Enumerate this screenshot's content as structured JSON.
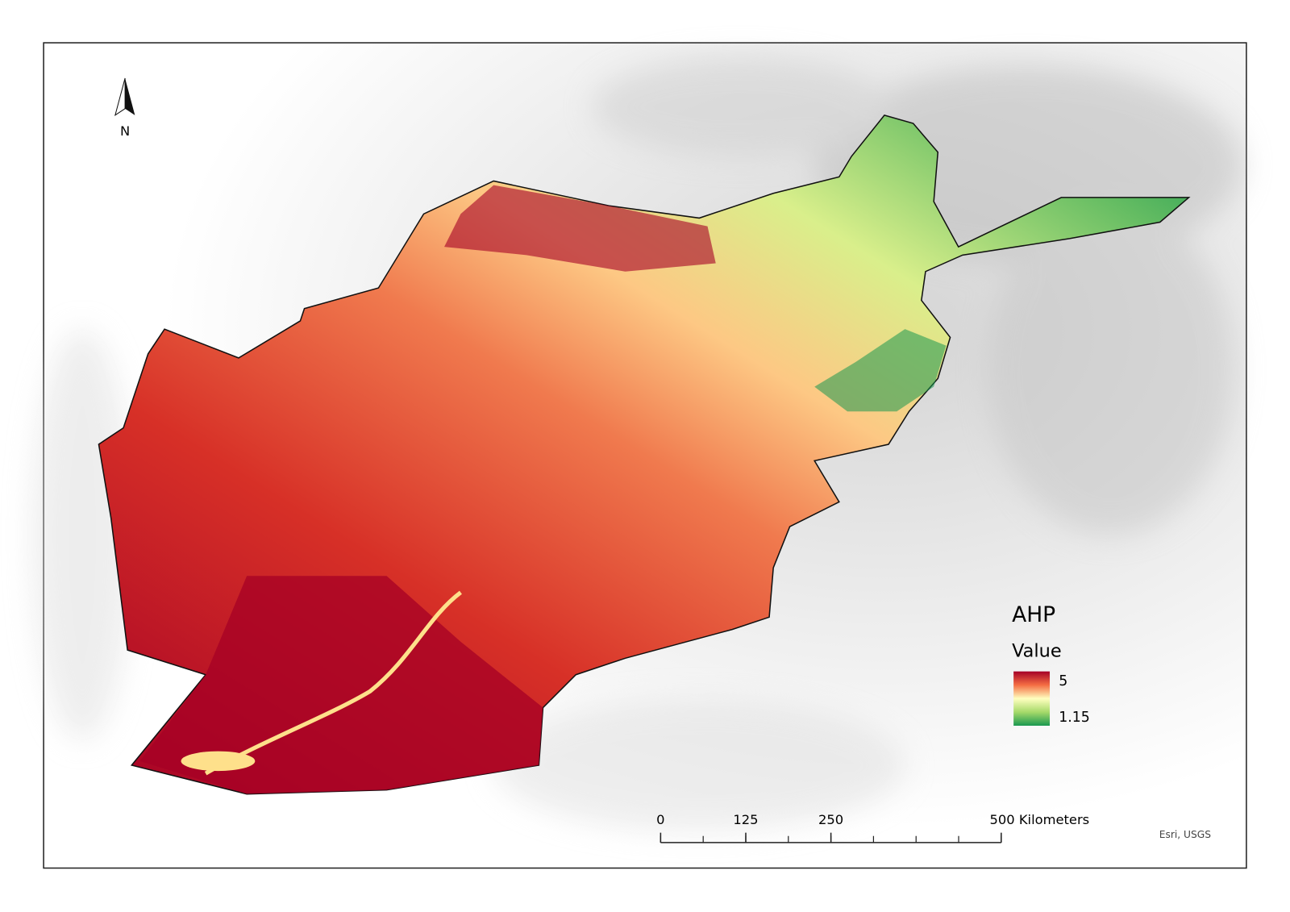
{
  "north_arrow": {
    "label": "N"
  },
  "legend": {
    "title": "AHP",
    "field": "Value",
    "high": 5,
    "low": 1.15
  },
  "scale_bar": {
    "ticks": [
      0,
      125,
      250,
      {
        "value": 500,
        "label": "500 Kilometers"
      }
    ]
  },
  "attribution": "Esri, USGS"
}
